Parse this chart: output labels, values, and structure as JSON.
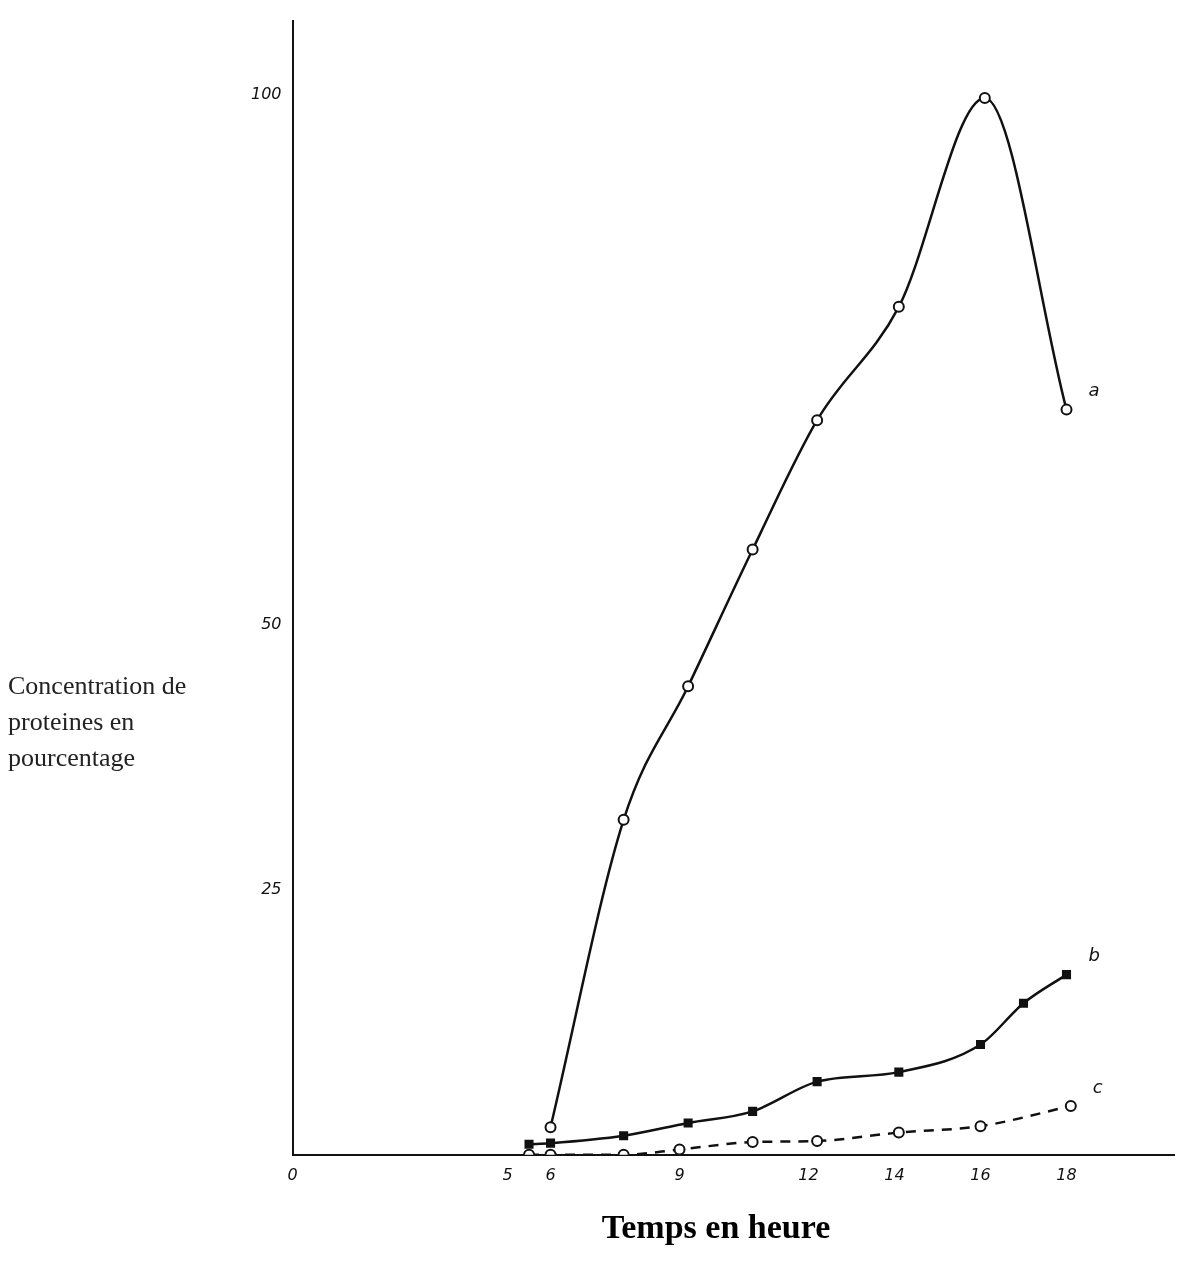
{
  "chart_data": {
    "type": "line",
    "xlabel": "Temps en heure",
    "ylabel": "Concentration de proteines en pourcentage",
    "xlim": [
      0,
      20.5
    ],
    "ylim": [
      0,
      107
    ],
    "xticks": [
      0,
      5,
      6,
      9,
      12,
      14,
      16,
      18
    ],
    "yticks": [
      25,
      50,
      100
    ],
    "grid": false,
    "legend": false,
    "series": [
      {
        "name": "a",
        "color": "#111111",
        "marker": "circle",
        "line_style": "solid",
        "x": [
          6,
          7.7,
          9.2,
          10.7,
          12.2,
          14.1,
          16.1,
          18
        ],
        "values": [
          2.6,
          31.6,
          44.2,
          57.1,
          69.3,
          80,
          99.7,
          70.3
        ]
      },
      {
        "name": "b",
        "color": "#111111",
        "marker": "square",
        "line_style": "solid",
        "x": [
          5.5,
          6,
          7.7,
          9.2,
          10.7,
          12.2,
          14.1,
          16,
          17,
          18
        ],
        "values": [
          1.0,
          1.1,
          1.8,
          3.0,
          4.1,
          6.9,
          7.8,
          10.4,
          14.3,
          17
        ]
      },
      {
        "name": "c",
        "color": "#111111",
        "marker": "circle",
        "line_style": "dashed",
        "x": [
          5.5,
          6,
          7.7,
          9,
          10.7,
          12.2,
          14.1,
          16,
          18.1
        ],
        "values": [
          0,
          0,
          0,
          0.5,
          1.2,
          1.3,
          2.1,
          2.7,
          4.6
        ]
      }
    ]
  }
}
